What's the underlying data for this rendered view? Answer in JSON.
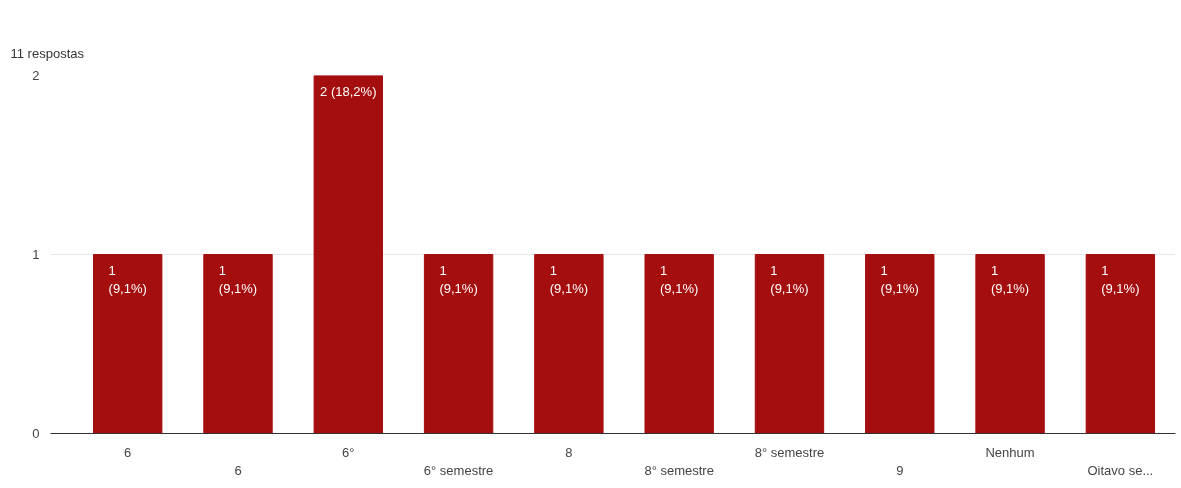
{
  "chart_data": {
    "type": "bar",
    "subtitle": "11 respostas",
    "categories": [
      "6",
      "6",
      "6°",
      "6° semestre",
      "8",
      "8° semestre",
      "8° semestre",
      "9",
      "Nenhum",
      "Oitavo se..."
    ],
    "values": [
      1,
      1,
      2,
      1,
      1,
      1,
      1,
      1,
      1,
      1
    ],
    "value_labels": [
      "1\n(9,1%)",
      "1\n(9,1%)",
      "2 (18,2%)",
      "1\n(9,1%)",
      "1\n(9,1%)",
      "1\n(9,1%)",
      "1\n(9,1%)",
      "1\n(9,1%)",
      "1\n(9,1%)",
      "1\n(9,1%)"
    ],
    "color": "#a50e0e",
    "ylim": [
      0,
      2
    ],
    "yticks": [
      0,
      1,
      2
    ],
    "grid": "y"
  }
}
